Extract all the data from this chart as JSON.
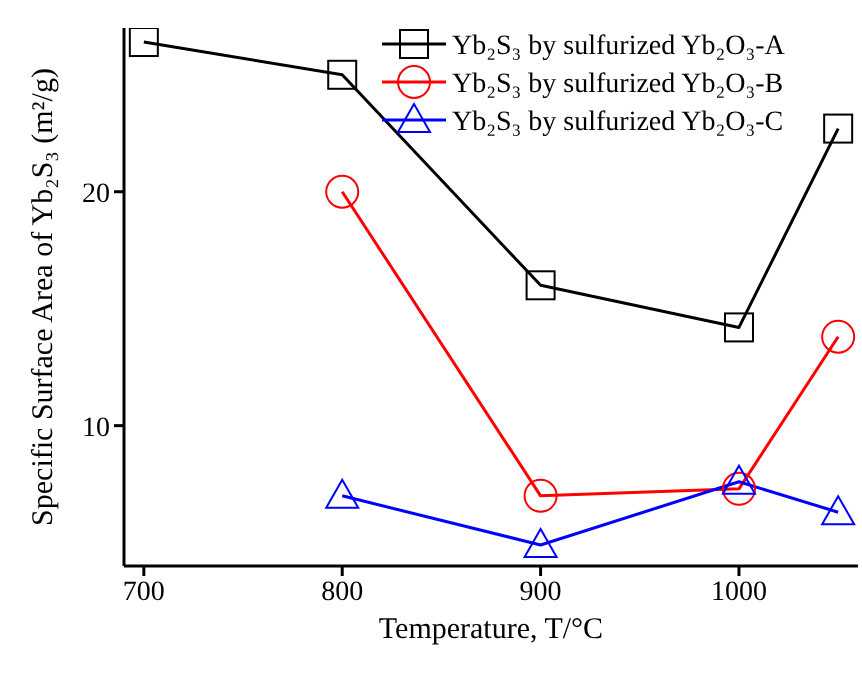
{
  "chart_data": {
    "type": "line",
    "xlabel": "Temperature, T/°C",
    "ylabel": "Specific Surface Area of Yb₂S₃ (m²/g)",
    "x": [
      700,
      800,
      900,
      1000,
      1050
    ],
    "xlim": [
      690,
      1060
    ],
    "xticks": [
      700,
      800,
      900,
      1000
    ],
    "ylim": [
      4,
      27
    ],
    "yticks": [
      10,
      20
    ],
    "legend": "top right",
    "grid": false,
    "series": [
      {
        "name": "Yb₂S₃ by sulfurized Yb₂O₃-A",
        "color": "#000000",
        "marker": "square",
        "values": [
          26.4,
          25.0,
          16.0,
          14.2,
          22.7
        ]
      },
      {
        "name": "Yb₂S₃ by sulfurized Yb₂O₃-B",
        "color": "#ff0000",
        "marker": "circle",
        "values": [
          null,
          20.0,
          7.0,
          7.3,
          13.8
        ]
      },
      {
        "name": "Yb₂S₃ by sulfurized Yb₂O₃-C",
        "color": "#0000ff",
        "marker": "triangle",
        "values": [
          null,
          7.0,
          4.9,
          7.6,
          6.3
        ]
      }
    ]
  }
}
